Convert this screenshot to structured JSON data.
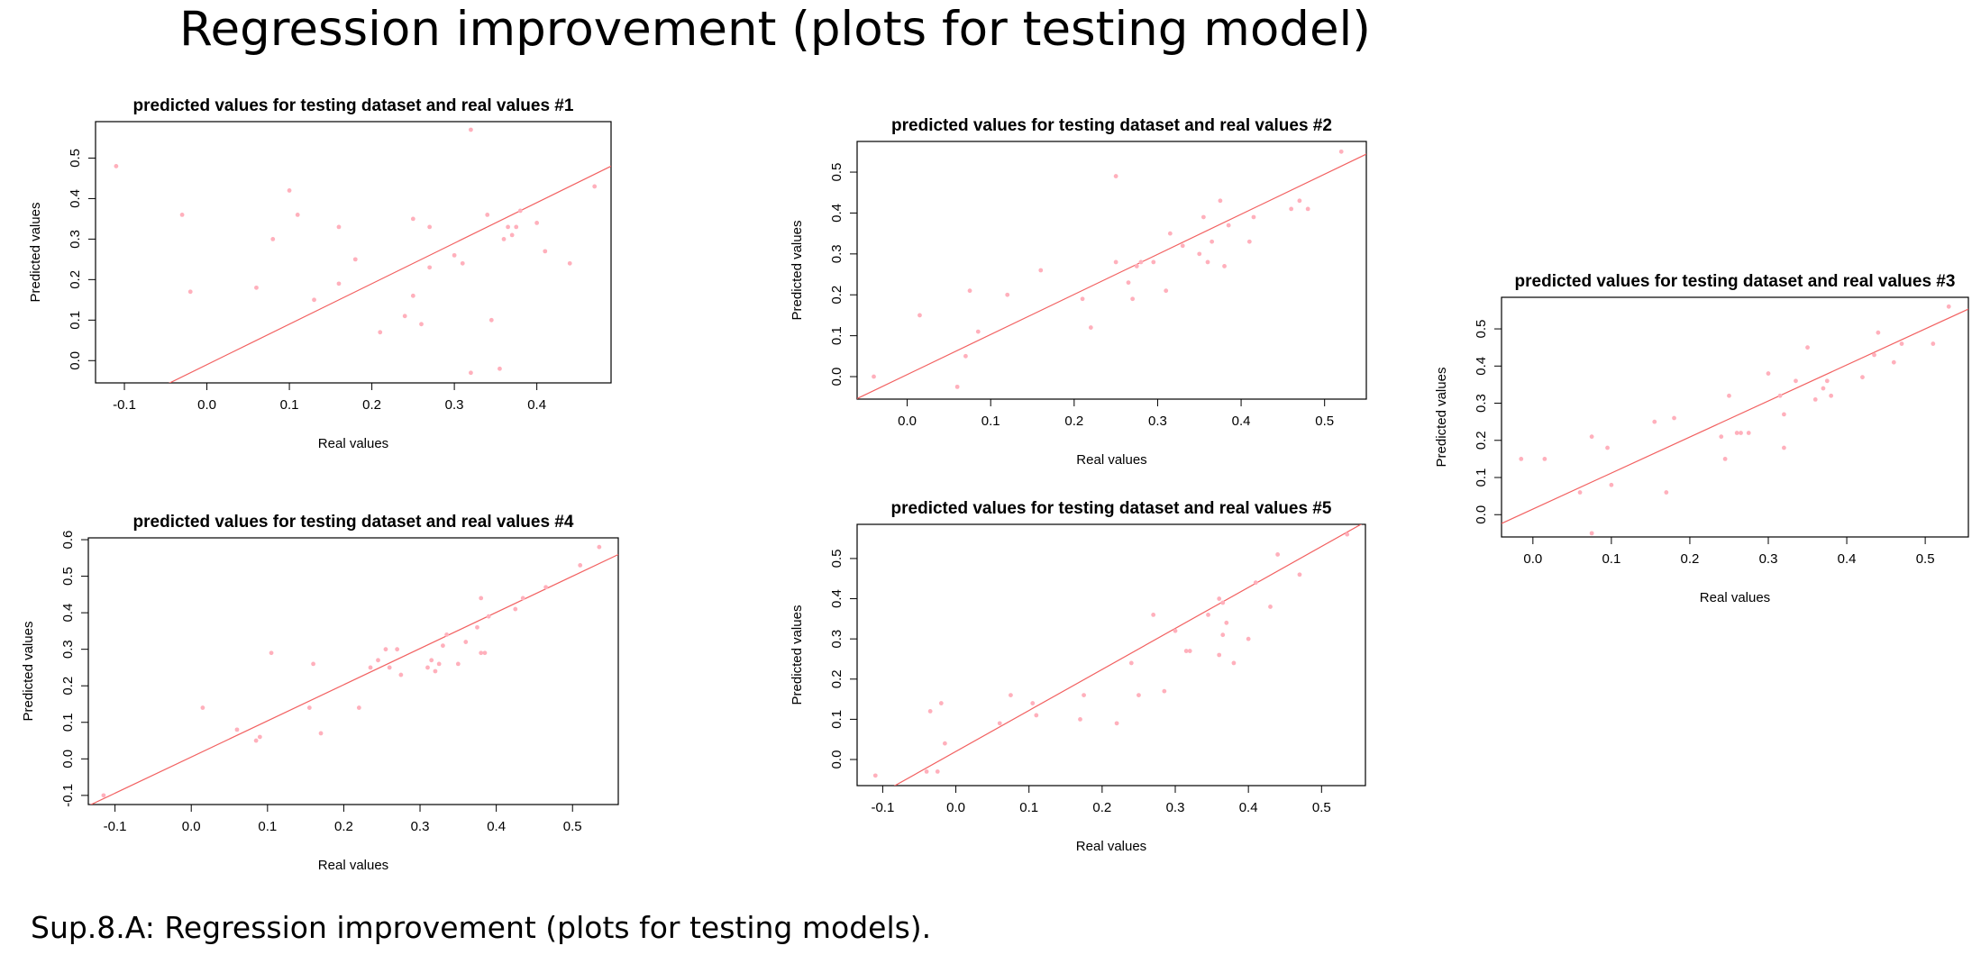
{
  "page": {
    "title": "Regression improvement (plots for testing model)",
    "caption": "Sup.8.A: Regression improvement (plots for testing models)."
  },
  "colors": {
    "points": "#ffb0bc",
    "line": "#f26060",
    "frame": "#000000"
  },
  "chart_data": [
    {
      "type": "scatter",
      "title": "predicted values for testing dataset and real values #1",
      "xlabel": "Real values",
      "ylabel": "Predicted values",
      "xlim": [
        -0.135,
        0.49
      ],
      "ylim": [
        -0.055,
        0.59
      ],
      "xticks": [
        "-0.1",
        "0.0",
        "0.1",
        "0.2",
        "0.3",
        "0.4"
      ],
      "yticks": [
        "0.0",
        "0.1",
        "0.2",
        "0.3",
        "0.4",
        "0.5"
      ],
      "line": {
        "intercept": -0.01,
        "slope": 1.0
      },
      "points": [
        [
          -0.11,
          0.48
        ],
        [
          -0.03,
          0.36
        ],
        [
          -0.02,
          0.17
        ],
        [
          0.06,
          0.18
        ],
        [
          0.08,
          0.3
        ],
        [
          0.1,
          0.42
        ],
        [
          0.11,
          0.36
        ],
        [
          0.13,
          0.15
        ],
        [
          0.16,
          0.33
        ],
        [
          0.16,
          0.19
        ],
        [
          0.18,
          0.25
        ],
        [
          0.21,
          0.07
        ],
        [
          0.24,
          0.11
        ],
        [
          0.25,
          0.35
        ],
        [
          0.25,
          0.16
        ],
        [
          0.26,
          0.09
        ],
        [
          0.27,
          0.33
        ],
        [
          0.27,
          0.23
        ],
        [
          0.3,
          0.26
        ],
        [
          0.31,
          0.24
        ],
        [
          0.32,
          -0.03
        ],
        [
          0.32,
          0.57
        ],
        [
          0.34,
          0.36
        ],
        [
          0.345,
          0.1
        ],
        [
          0.355,
          -0.02
        ],
        [
          0.36,
          0.3
        ],
        [
          0.365,
          0.33
        ],
        [
          0.37,
          0.31
        ],
        [
          0.375,
          0.33
        ],
        [
          0.38,
          0.37
        ],
        [
          0.4,
          0.34
        ],
        [
          0.41,
          0.27
        ],
        [
          0.44,
          0.24
        ],
        [
          0.47,
          0.43
        ]
      ]
    },
    {
      "type": "scatter",
      "title": "predicted values for testing dataset and real values #2",
      "xlabel": "Real values",
      "ylabel": "Predicted values",
      "xlim": [
        -0.06,
        0.55
      ],
      "ylim": [
        -0.055,
        0.575
      ],
      "xticks": [
        "0.0",
        "0.1",
        "0.2",
        "0.3",
        "0.4",
        "0.5"
      ],
      "yticks": [
        "0.0",
        "0.1",
        "0.2",
        "0.3",
        "0.4",
        "0.5"
      ],
      "line": {
        "intercept": 0.005,
        "slope": 0.98
      },
      "points": [
        [
          -0.04,
          0.0
        ],
        [
          0.015,
          0.15
        ],
        [
          0.06,
          -0.025
        ],
        [
          0.07,
          0.05
        ],
        [
          0.075,
          0.21
        ],
        [
          0.085,
          0.11
        ],
        [
          0.12,
          0.2
        ],
        [
          0.16,
          0.26
        ],
        [
          0.21,
          0.19
        ],
        [
          0.22,
          0.12
        ],
        [
          0.25,
          0.49
        ],
        [
          0.25,
          0.28
        ],
        [
          0.265,
          0.23
        ],
        [
          0.27,
          0.19
        ],
        [
          0.275,
          0.27
        ],
        [
          0.28,
          0.28
        ],
        [
          0.295,
          0.28
        ],
        [
          0.31,
          0.21
        ],
        [
          0.315,
          0.35
        ],
        [
          0.33,
          0.32
        ],
        [
          0.35,
          0.3
        ],
        [
          0.355,
          0.39
        ],
        [
          0.36,
          0.28
        ],
        [
          0.365,
          0.33
        ],
        [
          0.375,
          0.43
        ],
        [
          0.38,
          0.27
        ],
        [
          0.385,
          0.37
        ],
        [
          0.41,
          0.33
        ],
        [
          0.415,
          0.39
        ],
        [
          0.46,
          0.41
        ],
        [
          0.47,
          0.43
        ],
        [
          0.48,
          0.41
        ],
        [
          0.52,
          0.55
        ]
      ]
    },
    {
      "type": "scatter",
      "title": "predicted values for testing dataset and real values #3",
      "xlabel": "Real values",
      "ylabel": "Predicted values",
      "xlim": [
        -0.04,
        0.555
      ],
      "ylim": [
        -0.06,
        0.585
      ],
      "xticks": [
        "0.0",
        "0.1",
        "0.2",
        "0.3",
        "0.4",
        "0.5"
      ],
      "yticks": [
        "0.0",
        "0.1",
        "0.2",
        "0.3",
        "0.4",
        "0.5"
      ],
      "line": {
        "intercept": 0.015,
        "slope": 0.97
      },
      "points": [
        [
          -0.015,
          0.15
        ],
        [
          0.015,
          0.15
        ],
        [
          0.06,
          0.06
        ],
        [
          0.075,
          -0.05
        ],
        [
          0.075,
          0.21
        ],
        [
          0.095,
          0.18
        ],
        [
          0.1,
          0.08
        ],
        [
          0.155,
          0.25
        ],
        [
          0.17,
          0.06
        ],
        [
          0.18,
          0.26
        ],
        [
          0.24,
          0.21
        ],
        [
          0.245,
          0.15
        ],
        [
          0.25,
          0.32
        ],
        [
          0.26,
          0.22
        ],
        [
          0.265,
          0.22
        ],
        [
          0.275,
          0.22
        ],
        [
          0.3,
          0.38
        ],
        [
          0.315,
          0.32
        ],
        [
          0.32,
          0.27
        ],
        [
          0.32,
          0.18
        ],
        [
          0.335,
          0.36
        ],
        [
          0.35,
          0.45
        ],
        [
          0.36,
          0.31
        ],
        [
          0.37,
          0.34
        ],
        [
          0.375,
          0.36
        ],
        [
          0.38,
          0.32
        ],
        [
          0.42,
          0.37
        ],
        [
          0.435,
          0.43
        ],
        [
          0.44,
          0.49
        ],
        [
          0.46,
          0.41
        ],
        [
          0.47,
          0.46
        ],
        [
          0.51,
          0.46
        ],
        [
          0.53,
          0.56
        ]
      ]
    },
    {
      "type": "scatter",
      "title": "predicted values for testing dataset and real values #4",
      "xlabel": "Real values",
      "ylabel": "Predicted values",
      "xlim": [
        -0.135,
        0.56
      ],
      "ylim": [
        -0.125,
        0.605
      ],
      "xticks": [
        "-0.1",
        "0.0",
        "0.1",
        "0.2",
        "0.3",
        "0.4",
        "0.5"
      ],
      "yticks": [
        "-0.1",
        "0.0",
        "0.1",
        "0.2",
        "0.3",
        "0.4",
        "0.5",
        "0.6"
      ],
      "line": {
        "intercept": 0.005,
        "slope": 0.99
      },
      "points": [
        [
          -0.115,
          -0.1
        ],
        [
          0.015,
          0.14
        ],
        [
          0.06,
          0.08
        ],
        [
          0.085,
          0.05
        ],
        [
          0.09,
          0.06
        ],
        [
          0.105,
          0.29
        ],
        [
          0.155,
          0.14
        ],
        [
          0.16,
          0.26
        ],
        [
          0.17,
          0.07
        ],
        [
          0.22,
          0.14
        ],
        [
          0.235,
          0.25
        ],
        [
          0.245,
          0.27
        ],
        [
          0.255,
          0.3
        ],
        [
          0.26,
          0.25
        ],
        [
          0.27,
          0.3
        ],
        [
          0.275,
          0.23
        ],
        [
          0.31,
          0.25
        ],
        [
          0.315,
          0.27
        ],
        [
          0.32,
          0.24
        ],
        [
          0.325,
          0.26
        ],
        [
          0.33,
          0.31
        ],
        [
          0.335,
          0.34
        ],
        [
          0.35,
          0.26
        ],
        [
          0.36,
          0.32
        ],
        [
          0.375,
          0.36
        ],
        [
          0.38,
          0.44
        ],
        [
          0.38,
          0.29
        ],
        [
          0.385,
          0.29
        ],
        [
          0.39,
          0.39
        ],
        [
          0.425,
          0.41
        ],
        [
          0.435,
          0.44
        ],
        [
          0.465,
          0.47
        ],
        [
          0.51,
          0.53
        ],
        [
          0.535,
          0.58
        ]
      ]
    },
    {
      "type": "scatter",
      "title": "predicted values for testing dataset and real values #5",
      "xlabel": "Real values",
      "ylabel": "Predicted values",
      "xlim": [
        -0.135,
        0.56
      ],
      "ylim": [
        -0.065,
        0.585
      ],
      "xticks": [
        "-0.1",
        "0.0",
        "0.1",
        "0.2",
        "0.3",
        "0.4",
        "0.5"
      ],
      "yticks": [
        "0.0",
        "0.1",
        "0.2",
        "0.3",
        "0.4",
        "0.5"
      ],
      "line": {
        "intercept": 0.02,
        "slope": 1.02
      },
      "points": [
        [
          -0.11,
          -0.04
        ],
        [
          -0.04,
          -0.03
        ],
        [
          -0.035,
          0.12
        ],
        [
          -0.025,
          -0.03
        ],
        [
          -0.02,
          0.14
        ],
        [
          -0.015,
          0.04
        ],
        [
          0.06,
          0.09
        ],
        [
          0.075,
          0.16
        ],
        [
          0.105,
          0.14
        ],
        [
          0.11,
          0.11
        ],
        [
          0.17,
          0.1
        ],
        [
          0.175,
          0.16
        ],
        [
          0.22,
          0.09
        ],
        [
          0.24,
          0.24
        ],
        [
          0.25,
          0.16
        ],
        [
          0.27,
          0.36
        ],
        [
          0.285,
          0.17
        ],
        [
          0.3,
          0.32
        ],
        [
          0.315,
          0.27
        ],
        [
          0.32,
          0.27
        ],
        [
          0.345,
          0.36
        ],
        [
          0.36,
          0.26
        ],
        [
          0.36,
          0.4
        ],
        [
          0.365,
          0.31
        ],
        [
          0.365,
          0.39
        ],
        [
          0.37,
          0.34
        ],
        [
          0.38,
          0.24
        ],
        [
          0.4,
          0.3
        ],
        [
          0.41,
          0.44
        ],
        [
          0.43,
          0.38
        ],
        [
          0.44,
          0.51
        ],
        [
          0.47,
          0.46
        ],
        [
          0.535,
          0.56
        ]
      ]
    }
  ]
}
